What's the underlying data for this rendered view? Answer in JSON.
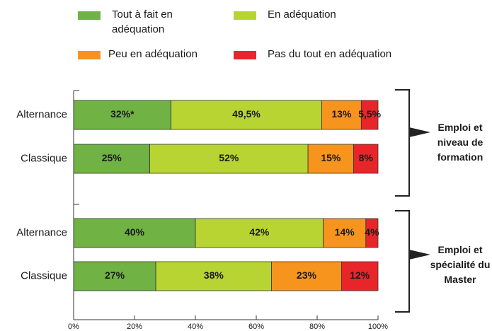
{
  "chart_data": {
    "type": "bar",
    "orientation": "horizontal",
    "stacked": true,
    "categories": [
      "Alternance",
      "Classique",
      "Alternance",
      "Classique"
    ],
    "groups": [
      "Emploi et niveau de formation",
      "Emploi et spécialité du Master"
    ],
    "series": [
      {
        "name": "Tout à fait en adéquation",
        "color": "#70b244",
        "values": [
          32,
          25,
          40,
          27
        ],
        "value_labels": [
          "32%*",
          "25%",
          "40%",
          "27%"
        ]
      },
      {
        "name": "En adéquation",
        "color": "#b8d433",
        "values": [
          49.5,
          52,
          42,
          38
        ],
        "value_labels": [
          "49,5%",
          "52%",
          "42%",
          "38%"
        ]
      },
      {
        "name": "Peu en adéquation",
        "color": "#f7941d",
        "values": [
          13,
          15,
          14,
          23
        ],
        "value_labels": [
          "13%",
          "15%",
          "14%",
          "23%"
        ]
      },
      {
        "name": "Pas du tout en adéquation",
        "color": "#e8262a",
        "values": [
          5.5,
          8,
          4,
          12
        ],
        "value_labels": [
          "5,5%",
          "8%",
          "4%",
          "12%"
        ]
      }
    ],
    "xlim": [
      0,
      100
    ],
    "xticks": [
      {
        "value": 0,
        "label": "0%"
      },
      {
        "value": 20,
        "label": "20%"
      },
      {
        "value": 40,
        "label": "40%"
      },
      {
        "value": 60,
        "label": "60%"
      },
      {
        "value": 80,
        "label": "80%"
      },
      {
        "value": 100,
        "label": "100%"
      }
    ]
  }
}
